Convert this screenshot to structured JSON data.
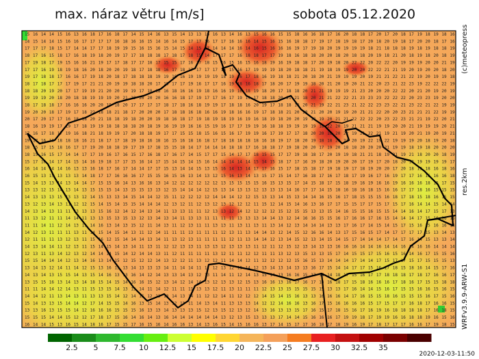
{
  "header": {
    "title": "max. náraz větru [m/s]",
    "date": "sobota 05.12.2020"
  },
  "side_labels": {
    "copyright": "(c)meteopress",
    "resolution": "res.2km",
    "model": "WRFv3.9.9-ARW-S1"
  },
  "footer": {
    "timestamp": "2020-12-03-11:50"
  },
  "map": {
    "grid_rows": 42,
    "grid_cols": 53,
    "typical_values": [
      11,
      12,
      13,
      14,
      15,
      16,
      17,
      18,
      19,
      20,
      21,
      22,
      23,
      24,
      25,
      26
    ],
    "border_color": "#000000"
  },
  "legend": {
    "unit": "m/s",
    "tick_labels": [
      "2.5",
      "5",
      "7.5",
      "10",
      "12.5",
      "15",
      "17.5",
      "20",
      "22.5",
      "25",
      "27.5",
      "30",
      "32.5",
      "35"
    ],
    "colors": [
      "#006400",
      "#1a8c1a",
      "#2eb82e",
      "#33dd33",
      "#66ee11",
      "#ccff33",
      "#ffff00",
      "#ffd633",
      "#f5b55a",
      "#f4a05a",
      "#f57c20",
      "#e82020",
      "#c41010",
      "#a00000",
      "#7a0000",
      "#4a0000"
    ]
  }
}
